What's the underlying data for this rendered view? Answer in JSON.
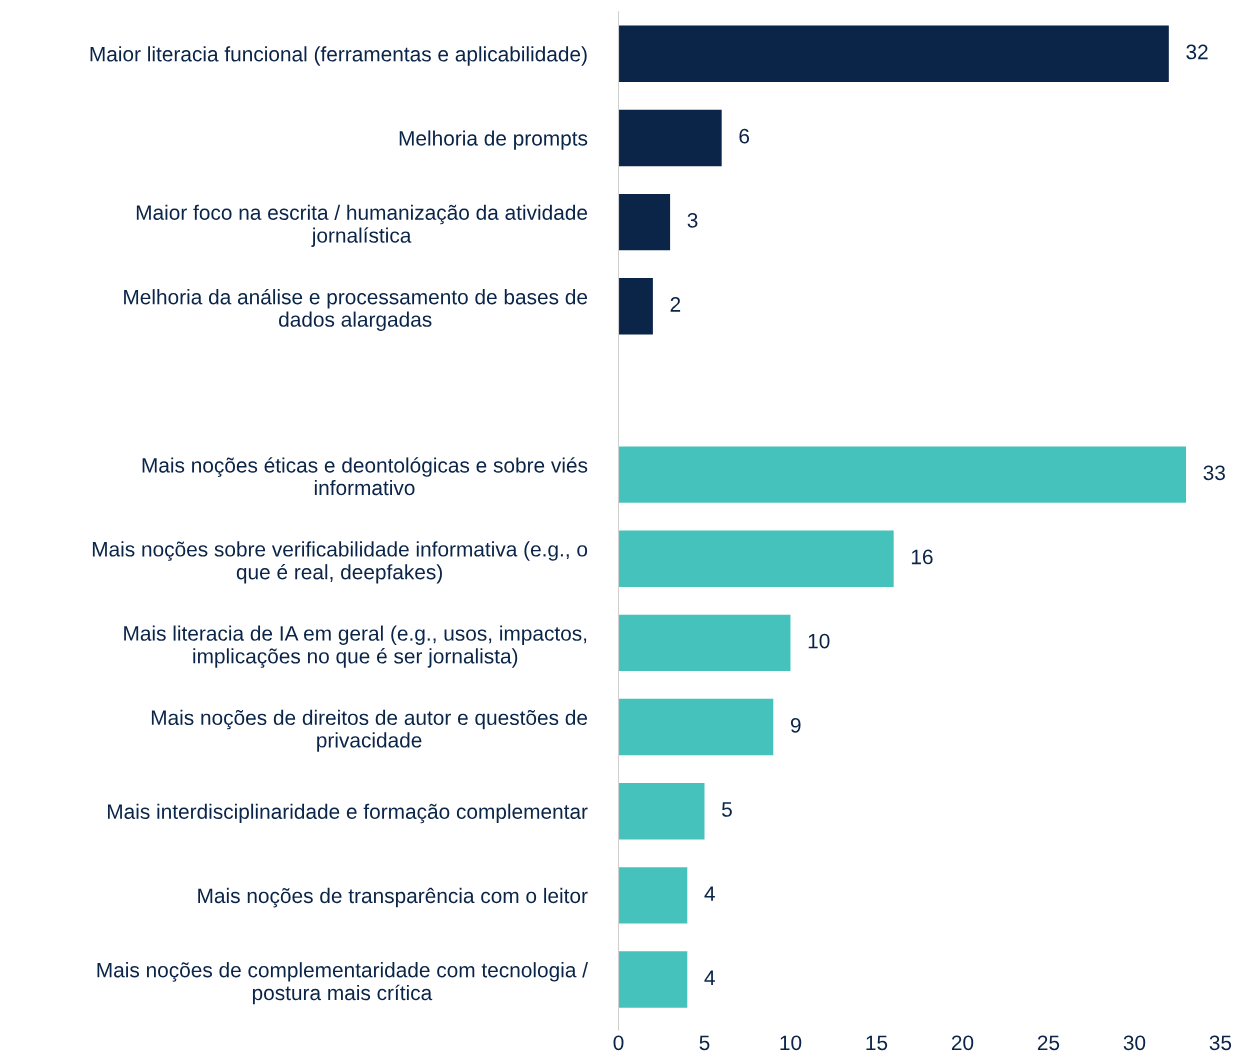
{
  "chart_data": {
    "type": "bar",
    "orientation": "horizontal",
    "categories": [
      "Maior literacia funcional (ferramentas e aplicabilidade)",
      "Melhoria de prompts",
      "Maior foco na escrita / humanização da atividade\njornalística",
      "Melhoria da análise e processamento de bases de\ndados alargadas",
      null,
      "Mais noções éticas e deontológicas e sobre viés\ninformativo",
      "Mais noções sobre verificabilidade informativa (e.g., o\nque é real, deepfakes)",
      "Mais literacia de IA em geral (e.g., usos, impactos,\nimplicações no que é ser jornalista)",
      "Mais noções de direitos de autor e questões de\nprivacidade",
      "Mais interdisciplinaridade e formação complementar",
      "Mais noções de transparência com o leitor",
      "Mais noções de complementaridade com tecnologia /\npostura mais crítica"
    ],
    "values": [
      32,
      6,
      3,
      2,
      null,
      33,
      16,
      10,
      9,
      5,
      4,
      4
    ],
    "colors": [
      "#0b2549",
      "#0b2549",
      "#0b2549",
      "#0b2549",
      null,
      "#46c2bd",
      "#46c2bd",
      "#46c2bd",
      "#46c2bd",
      "#46c2bd",
      "#46c2bd",
      "#46c2bd"
    ],
    "xlim": [
      0,
      35
    ],
    "xticks": [
      0,
      5,
      10,
      15,
      20,
      25,
      30,
      35
    ],
    "data_labels": true,
    "grid": false
  }
}
